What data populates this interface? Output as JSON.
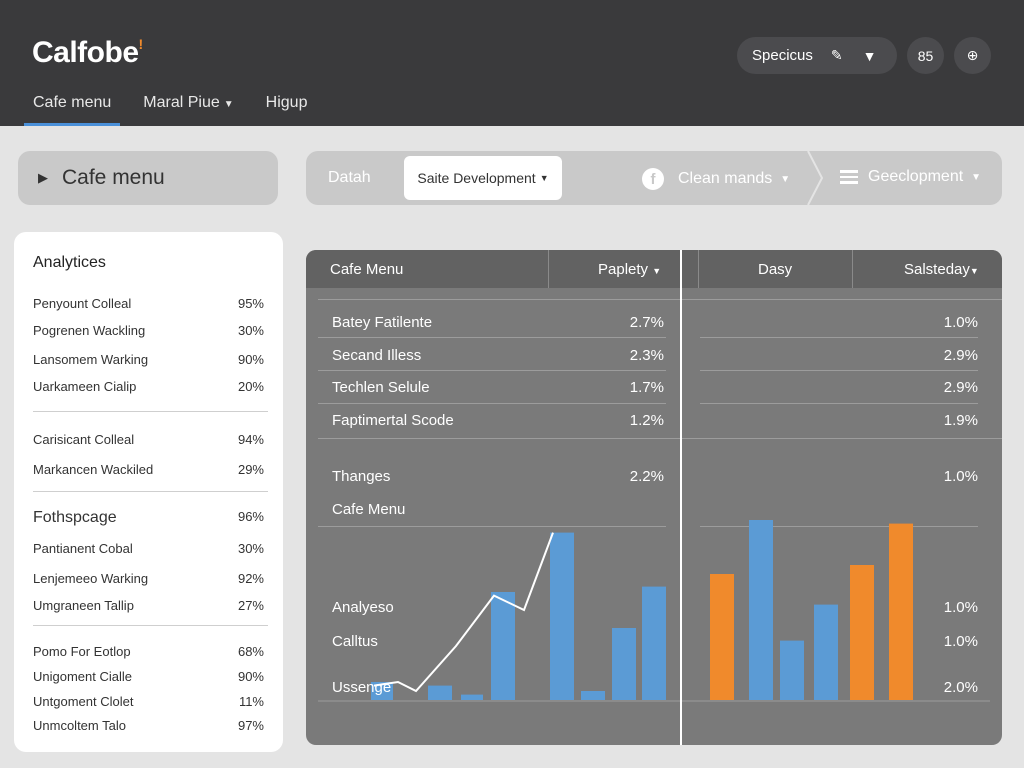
{
  "header": {
    "logo": "Calfobe",
    "logo_mark": "!",
    "nav": [
      {
        "label": "Cafe menu",
        "active": true,
        "dropdown": false
      },
      {
        "label": "Maral Piue",
        "active": false,
        "dropdown": true
      },
      {
        "label": "Higup",
        "active": false,
        "dropdown": false
      }
    ],
    "search_pill": {
      "label": "Specicus",
      "icons": [
        "pencil-icon",
        "filter-icon"
      ]
    },
    "circle_buttons": [
      "85",
      "⊕"
    ]
  },
  "title_card": {
    "label": "Cafe menu",
    "icon": "flag-icon"
  },
  "toolbar": {
    "label": "Datah",
    "dropdown": "Saite Development",
    "item1": "Clean mands",
    "item2": "Geeclopment"
  },
  "sidebar": {
    "heading": "Analytices",
    "group1": [
      {
        "label": "Penyount Colleal",
        "value": "95%"
      },
      {
        "label": "Pogrenen Wackling",
        "value": "30%"
      },
      {
        "label": "Lansomem Warking",
        "value": "90%"
      },
      {
        "label": "Uarkameen Cialip",
        "value": "20%"
      }
    ],
    "group2": [
      {
        "label": "Carisicant Colleal",
        "value": "94%"
      },
      {
        "label": "Markancen Wackiled",
        "value": "29%"
      }
    ],
    "heading2": {
      "label": "Fothspcage",
      "value": "96%"
    },
    "group3": [
      {
        "label": "Pantianent Cobal",
        "value": "30%"
      },
      {
        "label": "Lenjemeeo Warking",
        "value": "92%"
      },
      {
        "label": "Umgraneen Tallip",
        "value": "27%"
      }
    ],
    "group4": [
      {
        "label": "Pomo For Eotlop",
        "value": "68%"
      },
      {
        "label": "Unigoment Cialle",
        "value": "90%"
      },
      {
        "label": "Untgoment Clolet",
        "value": "11%"
      },
      {
        "label": "Unmcoltem Talo",
        "value": "97%"
      }
    ]
  },
  "panel": {
    "headers": [
      "Cafe Menu",
      "Paplety",
      "Dasy",
      "Salsteday"
    ],
    "rows": [
      {
        "label": "Batey Fatilente",
        "left": "2.7%",
        "right": "1.0%"
      },
      {
        "label": "Secand Illess",
        "left": "2.3%",
        "right": "2.9%"
      },
      {
        "label": "Techlen Selule",
        "left": "1.7%",
        "right": "2.9%"
      },
      {
        "label": "Faptimertal Scode",
        "left": "1.2%",
        "right": "1.9%"
      }
    ],
    "row_thanges": {
      "label": "Thanges",
      "left": "2.2%",
      "right": "1.0%"
    },
    "chart_title": "Cafe Menu",
    "chart_labels": [
      {
        "label": "Analyeso",
        "right": "1.0%"
      },
      {
        "label": "Calltus",
        "right": "1.0%"
      },
      {
        "label": "Ussenge",
        "right": "2.0%"
      }
    ]
  },
  "colors": {
    "blue": "#5b9bd5",
    "orange": "#f08a2c",
    "accent": "#4a90d9"
  },
  "chart_data": {
    "type": "bar",
    "series": [
      {
        "color": "blue",
        "values": [
          0.1,
          0.08,
          0.03,
          0.6,
          0.93,
          0.05,
          0.4,
          0.63
        ]
      },
      {
        "color": "mixed",
        "values": [
          0.7,
          1.0,
          0.33,
          0.53,
          0.75,
          0.98
        ],
        "bar_colors": [
          "orange",
          "blue",
          "blue",
          "blue",
          "orange",
          "orange"
        ]
      }
    ],
    "line": [
      0.08,
      0.1,
      0.05,
      0.3,
      0.58,
      0.5,
      0.93
    ],
    "ylim": [
      0,
      1
    ]
  }
}
